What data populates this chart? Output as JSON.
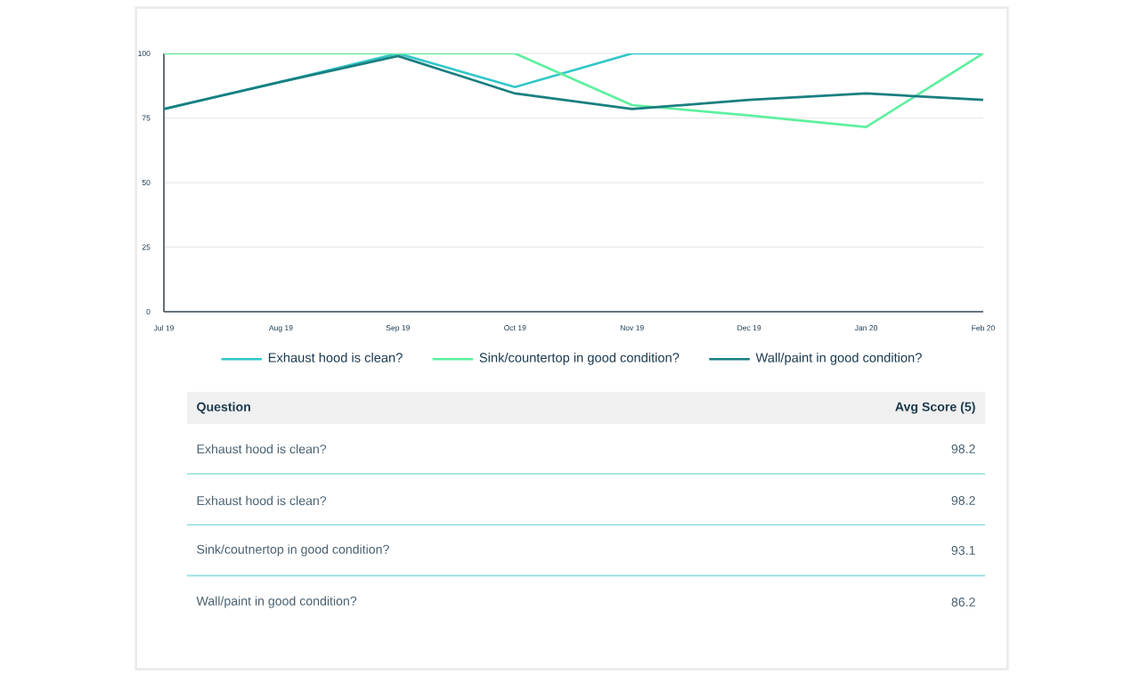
{
  "chart_data": {
    "type": "line",
    "categories": [
      "Jul 19",
      "Aug 19",
      "Sep 19",
      "Oct 19",
      "Nov 19",
      "Dec 19",
      "Jan 20",
      "Feb 20"
    ],
    "series": [
      {
        "name": "Exhaust hood is clean?",
        "color": "#33c7c9",
        "values": [
          78.5,
          89,
          100,
          87,
          100,
          100,
          100,
          100
        ]
      },
      {
        "name": "Sink/countertop in good condition?",
        "color": "#5ef0a0",
        "values": [
          100,
          100,
          100,
          100,
          80,
          76,
          71.5,
          100
        ]
      },
      {
        "name": "Wall/paint in good condition?",
        "color": "#1a7f80",
        "values": [
          78.5,
          89,
          99,
          84.5,
          78.5,
          82,
          84.5,
          82
        ]
      }
    ],
    "ylim": [
      0,
      100
    ],
    "yticks": [
      0,
      25,
      50,
      75,
      100
    ],
    "grid": "y",
    "legend": "bottom",
    "line_style": "solid",
    "annotations": [
      "Question",
      "Avg Score (5)",
      "Exhaust hood is clean?",
      "98.2",
      "Exhaust hood is clean?",
      "98.2",
      "Sink/coutnertop in good condition?",
      "93.1",
      "Wall/paint in good condition?",
      "86.2"
    ]
  }
}
